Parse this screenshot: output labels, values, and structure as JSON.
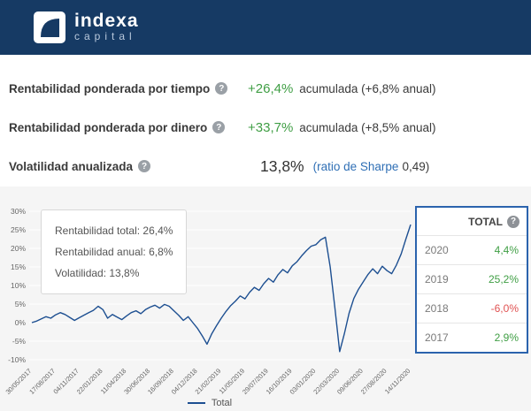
{
  "header": {
    "logo_top": "indexa",
    "logo_bottom": "capital"
  },
  "metrics": {
    "row1": {
      "label": "Rentabilidad ponderada por tiempo",
      "value": "+26,4%",
      "detail": "acumulada (+6,8% anual)"
    },
    "row2": {
      "label": "Rentabilidad ponderada por dinero",
      "value": "+33,7%",
      "detail": "acumulada (+8,5% anual)"
    },
    "row3": {
      "label": "Volatilidad anualizada",
      "value": "13,8%",
      "sharpe_link": "(ratio de Sharpe",
      "sharpe_value": "0,49)"
    }
  },
  "tooltip": {
    "lines": [
      "Rentabilidad total: 26,4%",
      "Rentabilidad anual: 6,8%",
      "Volatilidad: 13,8%"
    ]
  },
  "legend": {
    "label": "Total"
  },
  "table": {
    "header": "TOTAL",
    "rows": [
      {
        "year": "2020",
        "value": "4,4%",
        "color": "#3f9e44"
      },
      {
        "year": "2019",
        "value": "25,2%",
        "color": "#3f9e44"
      },
      {
        "year": "2018",
        "value": "-6,0%",
        "color": "#e05252"
      },
      {
        "year": "2017",
        "value": "2,9%",
        "color": "#3f9e44"
      }
    ]
  },
  "colors": {
    "accent_green": "#3f9e44",
    "accent_red": "#e05252",
    "line_blue": "#1d4f91",
    "link_blue": "#2f6fb5",
    "header_navy": "#163a64",
    "table_border": "#2b63ad"
  },
  "chart_data": {
    "type": "line",
    "title": "",
    "xlabel": "",
    "ylabel": "",
    "ylim": [
      -10,
      30
    ],
    "grid": true,
    "legend_position": "bottom",
    "y_tick_labels": [
      "30%",
      "25%",
      "20%",
      "15%",
      "10%",
      "5%",
      "0%",
      "-5%",
      "-10%"
    ],
    "x_tick_labels": [
      "30/05/2017",
      "17/08/2017",
      "04/11/2017",
      "22/01/2018",
      "11/04/2018",
      "30/06/2018",
      "16/09/2018",
      "04/12/2018",
      "21/02/2019",
      "11/05/2019",
      "29/07/2019",
      "16/10/2019",
      "03/01/2020",
      "22/03/2020",
      "09/06/2020",
      "27/08/2020",
      "14/11/2020"
    ],
    "series": [
      {
        "name": "Total",
        "values": [
          0,
          0.4,
          1.0,
          1.6,
          1.2,
          2.1,
          2.7,
          2.2,
          1.4,
          0.6,
          1.3,
          2.0,
          2.7,
          3.3,
          4.4,
          3.5,
          1.2,
          2.2,
          1.5,
          0.8,
          1.8,
          2.7,
          3.2,
          2.4,
          3.5,
          4.2,
          4.7,
          3.9,
          4.9,
          4.4,
          3.2,
          2.0,
          0.6,
          1.6,
          0.0,
          -1.6,
          -3.6,
          -5.8,
          -3.0,
          -0.8,
          1.2,
          3.0,
          4.6,
          5.8,
          7.2,
          6.4,
          8.2,
          9.5,
          8.7,
          10.5,
          11.9,
          10.9,
          12.9,
          14.3,
          13.4,
          15.3,
          16.4,
          18.0,
          19.4,
          20.6,
          21.0,
          22.3,
          23.0,
          15.0,
          4.0,
          -7.8,
          -3.0,
          2.5,
          6.5,
          9.0,
          11.0,
          13.0,
          14.5,
          13.2,
          15.2,
          14.0,
          13.2,
          15.5,
          18.5,
          22.5,
          26.4
        ]
      }
    ]
  }
}
